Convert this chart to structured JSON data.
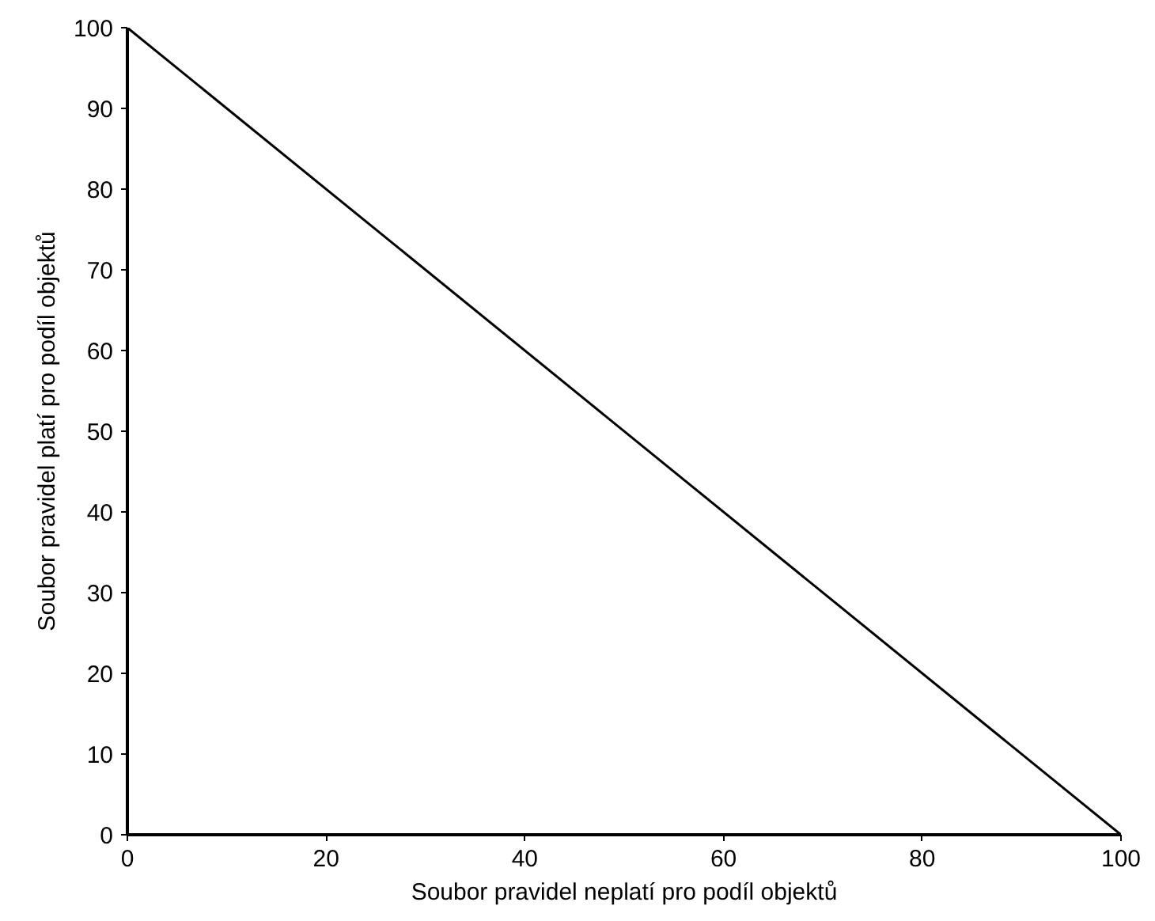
{
  "chart_data": {
    "type": "line",
    "xlabel": "Soubor pravidel neplatí pro podíl objektů",
    "ylabel": "Soubor pravidel platí pro podíl objektů",
    "x": [
      0,
      100
    ],
    "series": [
      {
        "color": "#000000",
        "values": [
          100,
          0
        ]
      }
    ],
    "xlim": [
      0,
      100
    ],
    "ylim": [
      0,
      100
    ],
    "xticks": [
      0,
      20,
      40,
      60,
      80,
      100
    ],
    "yticks": [
      0,
      10,
      20,
      30,
      40,
      50,
      60,
      70,
      80,
      90,
      100
    ],
    "grid": false,
    "marker": "none",
    "line_style": "solid"
  }
}
